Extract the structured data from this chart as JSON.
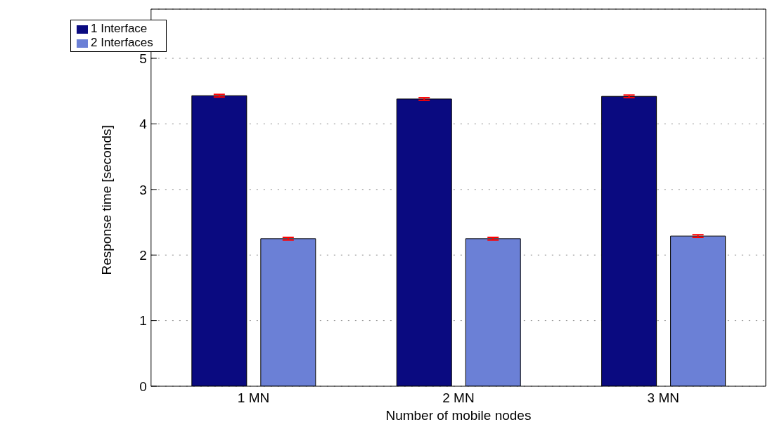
{
  "chart_data": {
    "type": "bar",
    "xlabel": "Number of mobile nodes",
    "ylabel": "Response time [seconds]",
    "categories": [
      "1 MN",
      "2 MN",
      "3 MN"
    ],
    "series": [
      {
        "name": "1 Interface",
        "color": "#0a0a80",
        "values": [
          4.43,
          4.38,
          4.42
        ],
        "errors": [
          0.02,
          0.02,
          0.02
        ]
      },
      {
        "name": "2 Interfaces",
        "color": "#6b80d6",
        "values": [
          2.25,
          2.25,
          2.29
        ],
        "errors": [
          0.02,
          0.02,
          0.02
        ]
      }
    ],
    "ylim": [
      0,
      5.75
    ],
    "yticks": [
      0,
      1,
      2,
      3,
      4,
      5
    ],
    "grid": "y",
    "legend": "top left"
  }
}
